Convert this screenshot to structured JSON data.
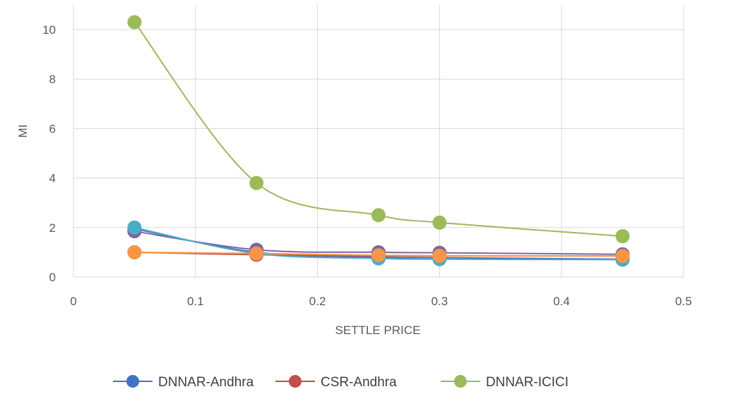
{
  "chart_data": {
    "type": "line",
    "xlabel": "SETTLE PRICE",
    "ylabel": "MI",
    "xlim": [
      0,
      0.5
    ],
    "ylim": [
      0,
      11
    ],
    "x_ticks": [
      "0",
      "0.1",
      "0.2",
      "0.3",
      "0.4",
      "0.5"
    ],
    "y_ticks": [
      "0",
      "2",
      "4",
      "6",
      "8",
      "10"
    ],
    "grid": true,
    "smooth": true,
    "legend_position": "bottom",
    "x": [
      0.05,
      0.15,
      0.25,
      0.3,
      0.45
    ],
    "series": [
      {
        "name": "DNNAR-Andhra",
        "color": "#4472C4",
        "values": [
          1.95,
          1.0,
          0.8,
          0.78,
          0.72
        ],
        "legend": true
      },
      {
        "name": "CSR-Andhra",
        "color": "#C0504D",
        "values": [
          1.0,
          0.9,
          0.85,
          0.85,
          0.85
        ],
        "legend": true
      },
      {
        "name": "DNNAR-ICICI",
        "color": "#9BBB59",
        "values": [
          10.3,
          3.8,
          2.5,
          2.2,
          1.65
        ],
        "legend": true
      },
      {
        "name": "",
        "color": "#8064A2",
        "values": [
          1.85,
          1.1,
          1.0,
          0.98,
          0.92
        ],
        "legend": false
      },
      {
        "name": "",
        "color": "#4BACC6",
        "values": [
          2.0,
          0.95,
          0.75,
          0.72,
          0.7
        ],
        "legend": false
      },
      {
        "name": "",
        "color": "#F79646",
        "values": [
          1.0,
          0.95,
          0.88,
          0.86,
          0.85
        ],
        "legend": false
      }
    ]
  }
}
